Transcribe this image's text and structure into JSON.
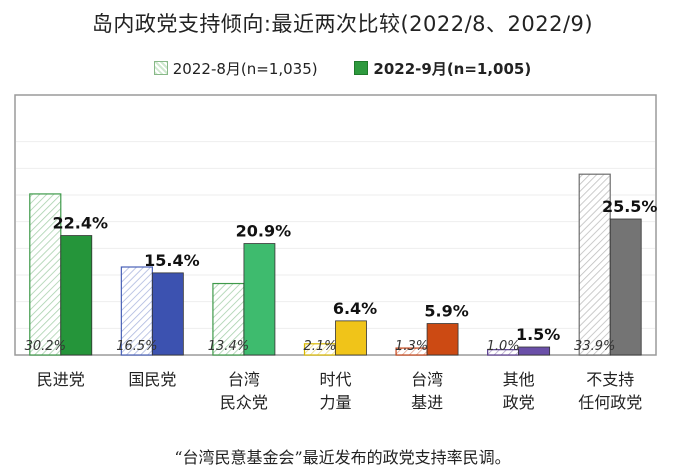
{
  "chart_data": {
    "type": "bar",
    "title": "岛内政党支持倾向:最近两次比较(2022/8、2022/9)",
    "categories": [
      [
        "民进党"
      ],
      [
        "国民党"
      ],
      [
        "台湾",
        "民众党"
      ],
      [
        "时代",
        "力量"
      ],
      [
        "台湾",
        "基进"
      ],
      [
        "其他",
        "政党"
      ],
      [
        "不支持",
        "任何政党"
      ]
    ],
    "series": [
      {
        "name": "2022-8月(n=1,035)",
        "values": [
          30.2,
          16.5,
          13.4,
          2.1,
          1.3,
          1.0,
          33.9
        ],
        "labels": [
          "30.2%",
          "16.5%",
          "13.4%",
          "2.1%",
          "1.3%",
          "1.0%",
          "33.9%"
        ]
      },
      {
        "name": "2022-9月(n=1,005)",
        "values": [
          22.4,
          15.4,
          20.9,
          6.4,
          5.9,
          1.5,
          25.5
        ],
        "labels": [
          "22.4%",
          "15.4%",
          "20.9%",
          "6.4%",
          "5.9%",
          "1.5%",
          "25.5%"
        ]
      }
    ],
    "colors": {
      "aug": [
        "#3f9a4a",
        "#4a62b8",
        "#3f9a4a",
        "#d9b800",
        "#c4451a",
        "#5a3d8f",
        "#6e6e6e"
      ],
      "sep": [
        "#25953a",
        "#3c52b0",
        "#3ebb6e",
        "#f0c419",
        "#cc4a13",
        "#6a4fa8",
        "#747474"
      ]
    },
    "ylim": [
      0,
      45
    ]
  },
  "caption": "“台湾民意基金会”最近发布的政党支持率民调。"
}
